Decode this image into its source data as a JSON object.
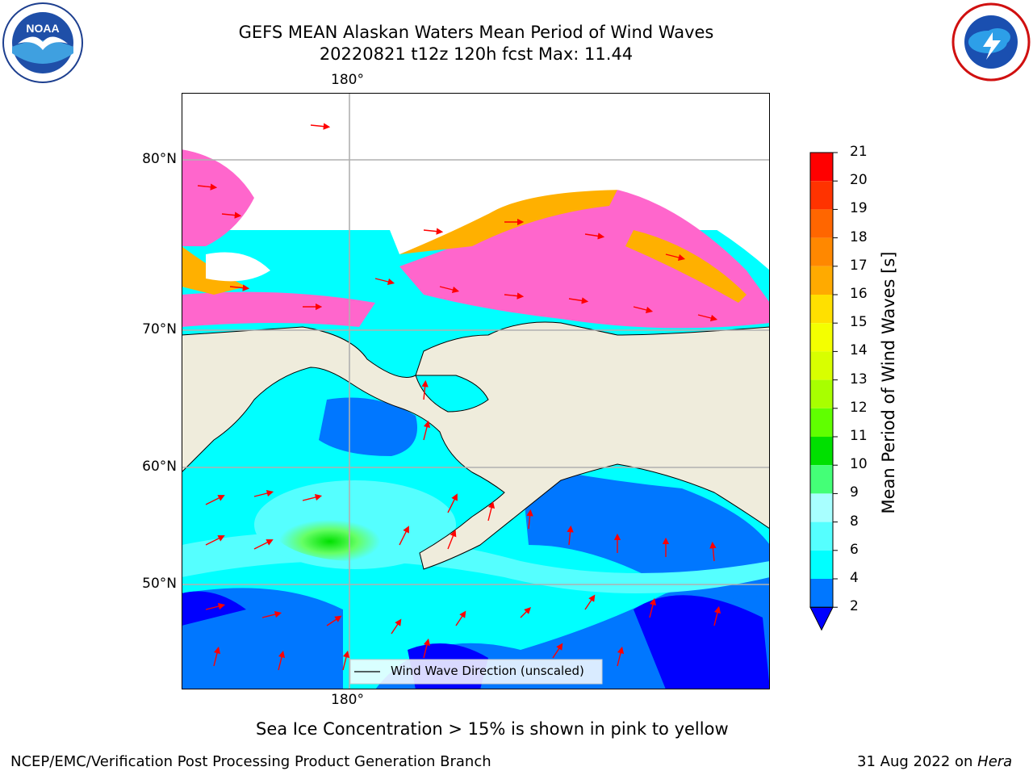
{
  "title": {
    "line1": "GEFS MEAN Alaskan Waters Mean Period of Wind Waves",
    "line2": "20220821 t12z 120h fcst   Max: 11.44"
  },
  "logos": {
    "left": {
      "icon": "noaa-logo",
      "text": "NOAA"
    },
    "right": {
      "icon": "nws-logo"
    }
  },
  "map": {
    "lon_label_top": "180°",
    "lon_label_bottom": "180°",
    "lat_labels": [
      "80°N",
      "70°N",
      "60°N",
      "50°N"
    ],
    "land_color": "#efecdc",
    "ice_colors": [
      "#ff66cc",
      "#ffb000",
      "#ffff00"
    ],
    "arrow_color": "#ff0000",
    "legend_label": "Wind Wave Direction (unscaled)"
  },
  "colorbar": {
    "label": "Mean Period of Wind Waves [s]",
    "ticks": [
      "21",
      "20",
      "19",
      "18",
      "17",
      "16",
      "15",
      "14",
      "13",
      "12",
      "11",
      "10",
      "9",
      "8",
      "6",
      "4",
      "2"
    ],
    "colors": [
      "#ff0000",
      "#ff3300",
      "#ff6600",
      "#ff8800",
      "#ffaa00",
      "#ffe000",
      "#f4ff00",
      "#d8ff00",
      "#a8ff00",
      "#60ff00",
      "#00e000",
      "#44ff77",
      "#a8ffff",
      "#55ffff",
      "#00ffff",
      "#0077ff"
    ],
    "under_color": "#0000ff"
  },
  "caption": "Sea Ice Concentration > 15% is shown in pink to yellow",
  "footer": {
    "left": "NCEP/EMC/Verification Post Processing Product Generation Branch",
    "right_prefix": "31 Aug 2022 on ",
    "right_host": "Hera"
  }
}
